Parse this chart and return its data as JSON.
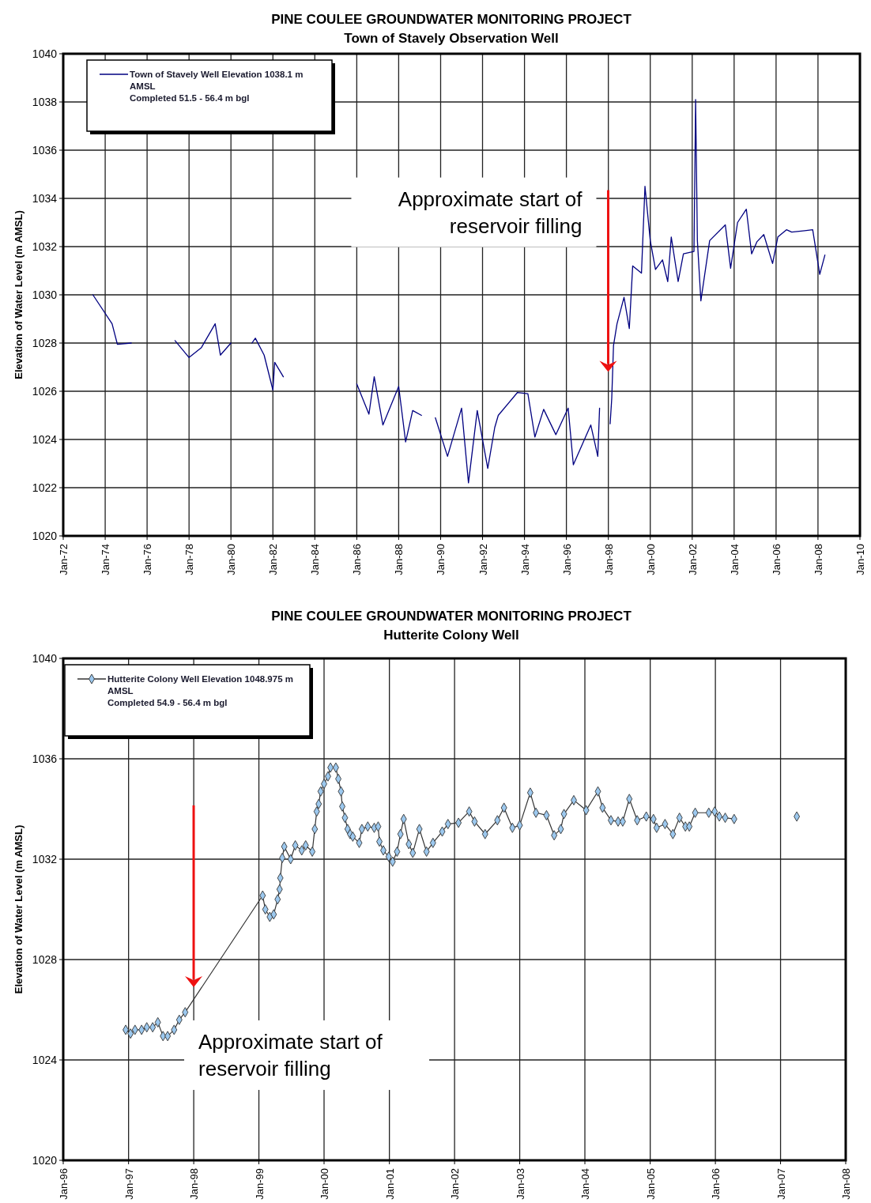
{
  "chart_data": [
    {
      "type": "line",
      "title": "PINE COULEE GROUNDWATER MONITORING PROJECT",
      "subtitle": "Town of Stavely Observation Well",
      "ylabel": "Elevation of Water Level (m AMSL)",
      "x": [
        "1973-06",
        "1974-05",
        "1974-08",
        "1975-04",
        "1976-06",
        "1977-05",
        "1978-01",
        "1978-08",
        "1979-04",
        "1979-07",
        "1980-01",
        "1980-07",
        "1981-01",
        "1981-03",
        "1981-08",
        "1982-01",
        "1982-02",
        "1982-07",
        "1984-06",
        "1986-01",
        "1986-08",
        "1986-11",
        "1987-04",
        "1988-01",
        "1988-05",
        "1988-09",
        "1989-02",
        "1989-06",
        "1989-10",
        "1990-05",
        "1991-01",
        "1991-05",
        "1991-10",
        "1992-04",
        "1992-08",
        "1992-10",
        "1993-09",
        "1994-03",
        "1994-07",
        "1994-12",
        "1995-07",
        "1996-02",
        "1996-05",
        "1997-03",
        "1997-07",
        "1997-08",
        "1997-10",
        "1998-02",
        "1998-03",
        "1998-04",
        "1998-06",
        "1998-10",
        "1999-01",
        "1999-03",
        "1999-08",
        "1999-10",
        "2000-01",
        "2000-04",
        "2000-08",
        "2000-11",
        "2001-01",
        "2001-05",
        "2001-08",
        "2002-02",
        "2002-03",
        "2002-04",
        "2002-06",
        "2002-11",
        "2003-08",
        "2003-11",
        "2004-03",
        "2004-08",
        "2004-11",
        "2005-02",
        "2005-06",
        "2005-11",
        "2006-02",
        "2006-07",
        "2006-10",
        "2007-10",
        "2008-02",
        "2008-05"
      ],
      "series": [
        {
          "name": "Town of Stavely Well Elevation 1038.1 m AMSL",
          "color": "#000080",
          "values": [
            1030.0,
            1028.8,
            1027.95,
            1028.0,
            null,
            1028.1,
            1027.4,
            1027.8,
            1028.8,
            1027.5,
            1028.0,
            null,
            1028.0,
            1028.2,
            1027.5,
            1026.05,
            1027.2,
            1026.6,
            null,
            1026.3,
            1025.05,
            1026.6,
            1024.6,
            1026.2,
            1023.9,
            1025.2,
            1025.0,
            null,
            1024.9,
            1023.3,
            1025.3,
            1022.2,
            1025.2,
            1022.8,
            1024.5,
            1025.0,
            1025.95,
            1025.9,
            1024.1,
            1025.25,
            1024.2,
            1025.3,
            1022.95,
            1024.6,
            1023.3,
            1025.3,
            null,
            1024.65,
            1025.7,
            1027.9,
            1028.8,
            1029.9,
            1028.6,
            1031.2,
            1030.9,
            1034.5,
            1032.25,
            1031.05,
            1031.45,
            1030.55,
            1032.4,
            1030.55,
            1031.7,
            1031.8,
            1038.1,
            1032.25,
            1029.75,
            1032.25,
            1032.9,
            1031.1,
            1033.0,
            1033.55,
            1031.7,
            1032.2,
            1032.5,
            1031.3,
            1032.4,
            1032.7,
            1032.6,
            1032.7,
            1030.85,
            1031.65
          ]
        }
      ],
      "xlim": [
        "1972-01",
        "2010-01"
      ],
      "xticks": [
        {
          "value": "1972-01",
          "label": "Jan-72"
        },
        {
          "value": "1974-01",
          "label": "Jan-74"
        },
        {
          "value": "1976-01",
          "label": "Jan-76"
        },
        {
          "value": "1978-01",
          "label": "Jan-78"
        },
        {
          "value": "1980-01",
          "label": "Jan-80"
        },
        {
          "value": "1982-01",
          "label": "Jan-82"
        },
        {
          "value": "1984-01",
          "label": "Jan-84"
        },
        {
          "value": "1986-01",
          "label": "Jan-86"
        },
        {
          "value": "1988-01",
          "label": "Jan-88"
        },
        {
          "value": "1990-01",
          "label": "Jan-90"
        },
        {
          "value": "1992-01",
          "label": "Jan-92"
        },
        {
          "value": "1994-01",
          "label": "Jan-94"
        },
        {
          "value": "1996-01",
          "label": "Jan-96"
        },
        {
          "value": "1998-01",
          "label": "Jan-98"
        },
        {
          "value": "2000-01",
          "label": "Jan-00"
        },
        {
          "value": "2002-01",
          "label": "Jan-02"
        },
        {
          "value": "2004-01",
          "label": "Jan-04"
        },
        {
          "value": "2006-01",
          "label": "Jan-06"
        },
        {
          "value": "2008-01",
          "label": "Jan-08"
        },
        {
          "value": "2010-01",
          "label": "Jan-10"
        }
      ],
      "ylim": [
        1020,
        1040
      ],
      "yticks": [
        1020,
        1022,
        1024,
        1026,
        1028,
        1030,
        1032,
        1034,
        1036,
        1038,
        1040
      ],
      "grid": true,
      "legend": "top left",
      "marker": "none",
      "annotations": [
        "Approximate start of reservoir filling",
        "Completed 51.5 - 56.4 m bgl"
      ]
    },
    {
      "type": "line",
      "title": "PINE COULEE GROUNDWATER MONITORING PROJECT",
      "subtitle": "Hutterite Colony Well",
      "ylabel": "Elevation of Water Level (m AMSL)",
      "x": [
        "1996-12-16",
        "1997-01-12",
        "1997-02-06",
        "1997-03-15",
        "1997-04-13",
        "1997-05-16",
        "1997-06-14",
        "1997-07-13",
        "1997-08-08",
        "1997-09-13",
        "1997-10-12",
        "1997-11-14",
        "1999-01-22",
        "1999-02-06",
        "1999-03-03",
        "1999-03-25",
        "1999-04-16",
        "1999-04-27",
        "1999-05-01",
        "1999-05-12",
        "1999-05-23",
        "1999-06-28",
        "1999-07-24",
        "1999-08-29",
        "1999-09-20",
        "1999-10-27",
        "1999-11-10",
        "1999-11-21",
        "1999-12-02",
        "1999-12-13",
        "2000-01-01",
        "2000-01-23",
        "2000-02-06",
        "2000-03-07",
        "2000-03-21",
        "2000-04-05",
        "2000-04-12",
        "2000-04-27",
        "2000-05-12",
        "2000-05-26",
        "2000-06-10",
        "2000-07-16",
        "2000-07-31",
        "2000-09-02",
        "2000-10-08",
        "2000-10-30",
        "2000-11-06",
        "2000-11-28",
        "2000-12-28",
        "2001-01-19",
        "2001-02-13",
        "2001-03-04",
        "2001-03-22",
        "2001-04-20",
        "2001-05-12",
        "2001-06-18",
        "2001-07-28",
        "2001-09-02",
        "2001-10-24",
        "2001-11-25",
        "2002-01-23",
        "2002-03-24",
        "2002-04-23",
        "2002-06-21",
        "2002-08-29",
        "2002-10-05",
        "2002-11-21",
        "2003-01-01",
        "2003-03-01",
        "2003-04-02",
        "2003-05-31",
        "2003-07-13",
        "2003-08-19",
        "2003-09-06",
        "2003-10-31",
        "2004-01-08",
        "2004-03-14",
        "2004-04-09",
        "2004-05-26",
        "2004-07-05",
        "2004-07-31",
        "2004-09-06",
        "2004-10-20",
        "2004-12-10",
        "2005-01-19",
        "2005-02-06",
        "2005-03-25",
        "2005-05-08",
        "2005-06-14",
        "2005-07-17",
        "2005-08-08",
        "2005-09-10",
        "2005-11-25",
        "2005-12-28",
        "2006-01-23",
        "2006-02-25",
        "2006-04-16",
        "2006-10-01",
        "2007-04-02"
      ],
      "series": [
        {
          "name": "Hutterite Colony Well Elevation 1048.975 m AMSL",
          "color": "#9cc8ee",
          "values": [
            1025.2,
            1025.05,
            1025.2,
            1025.2,
            1025.3,
            1025.3,
            1025.5,
            1024.95,
            1024.95,
            1025.2,
            1025.6,
            1025.9,
            1030.55,
            1030.0,
            1029.7,
            1029.8,
            1030.4,
            1030.8,
            1031.25,
            1032.05,
            1032.5,
            1032.0,
            1032.55,
            1032.35,
            1032.55,
            1032.3,
            1033.2,
            1033.9,
            1034.2,
            1034.7,
            1035.0,
            1035.3,
            1035.65,
            1035.65,
            1035.2,
            1034.7,
            1034.1,
            1033.65,
            1033.2,
            1033.0,
            1032.9,
            1032.65,
            1033.2,
            1033.3,
            1033.25,
            1033.3,
            1032.7,
            1032.35,
            1032.1,
            1031.9,
            1032.3,
            1033.0,
            1033.6,
            1032.6,
            1032.25,
            1033.2,
            1032.3,
            1032.65,
            1033.1,
            1033.4,
            1033.45,
            1033.9,
            1033.5,
            1033.0,
            1033.55,
            1034.05,
            1033.25,
            1033.35,
            1034.65,
            1033.85,
            1033.75,
            1032.95,
            1033.2,
            1033.8,
            1034.35,
            1033.95,
            1034.7,
            1034.05,
            1033.55,
            1033.5,
            1033.5,
            1034.4,
            1033.55,
            1033.7,
            1033.6,
            1033.25,
            1033.4,
            1033.0,
            1033.65,
            1033.3,
            1033.3,
            1033.85,
            1033.85,
            1033.9,
            1033.7,
            1033.65,
            1033.6,
            null,
            1033.7
          ]
        }
      ],
      "xlim": [
        "1996-01",
        "2008-01"
      ],
      "xticks": [
        {
          "value": "1996-01",
          "label": "Jan-96"
        },
        {
          "value": "1997-01",
          "label": "Jan-97"
        },
        {
          "value": "1998-01",
          "label": "Jan-98"
        },
        {
          "value": "1999-01",
          "label": "Jan-99"
        },
        {
          "value": "2000-01",
          "label": "Jan-00"
        },
        {
          "value": "2001-01",
          "label": "Jan-01"
        },
        {
          "value": "2002-01",
          "label": "Jan-02"
        },
        {
          "value": "2003-01",
          "label": "Jan-03"
        },
        {
          "value": "2004-01",
          "label": "Jan-04"
        },
        {
          "value": "2005-01",
          "label": "Jan-05"
        },
        {
          "value": "2006-01",
          "label": "Jan-06"
        },
        {
          "value": "2007-01",
          "label": "Jan-07"
        },
        {
          "value": "2008-01",
          "label": "Jan-08"
        }
      ],
      "ylim": [
        1020,
        1040
      ],
      "yticks": [
        1020,
        1024,
        1028,
        1032,
        1036,
        1040
      ],
      "grid": true,
      "legend": "top left",
      "marker": "diamond",
      "annotations": [
        "Approximate start of reservoir filling",
        "Completed 54.9 - 56.4 m bgl"
      ]
    }
  ]
}
